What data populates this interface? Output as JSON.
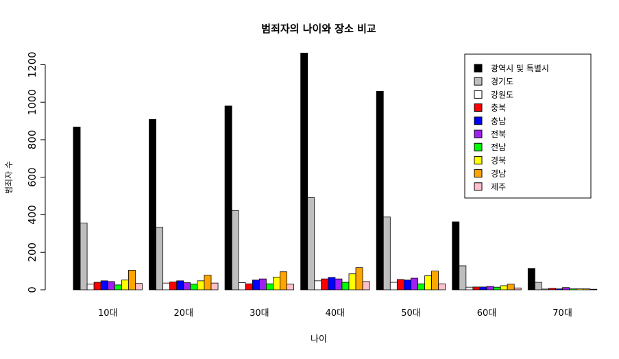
{
  "chart_data": {
    "type": "bar",
    "title": "범죄자의 나이와 장소 비교",
    "xlabel": "나이",
    "ylabel": "범죄자 수",
    "ylim": [
      0,
      1260
    ],
    "yticks": [
      0,
      200,
      400,
      600,
      800,
      1000,
      1200
    ],
    "legend_position": "top-right",
    "categories": [
      "10대",
      "20대",
      "30대",
      "40대",
      "50대",
      "60대",
      "70대"
    ],
    "series": [
      {
        "name": "광역시 및 특별시",
        "color": "#000000",
        "values": [
          868,
          908,
          980,
          1262,
          1058,
          362,
          114
        ]
      },
      {
        "name": "경기도",
        "color": "#bebebe",
        "values": [
          356,
          333,
          422,
          491,
          388,
          128,
          40
        ]
      },
      {
        "name": "강원도",
        "color": "#ffffff",
        "values": [
          30,
          36,
          38,
          48,
          40,
          14,
          4
        ]
      },
      {
        "name": "충북",
        "color": "#ff0000",
        "values": [
          40,
          42,
          32,
          58,
          55,
          15,
          8
        ]
      },
      {
        "name": "충남",
        "color": "#0000ff",
        "values": [
          48,
          48,
          52,
          66,
          52,
          15,
          5
        ]
      },
      {
        "name": "전북",
        "color": "#a020f0",
        "values": [
          44,
          38,
          58,
          58,
          62,
          18,
          12
        ]
      },
      {
        "name": "전남",
        "color": "#00ff00",
        "values": [
          26,
          30,
          32,
          40,
          32,
          14,
          5
        ]
      },
      {
        "name": "경북",
        "color": "#ffff00",
        "values": [
          52,
          48,
          68,
          85,
          75,
          22,
          5
        ]
      },
      {
        "name": "경남",
        "color": "#ffa500",
        "values": [
          104,
          78,
          96,
          118,
          100,
          30,
          5
        ]
      },
      {
        "name": "제주",
        "color": "#ffc0cb",
        "values": [
          34,
          36,
          30,
          44,
          32,
          10,
          3
        ]
      }
    ]
  }
}
